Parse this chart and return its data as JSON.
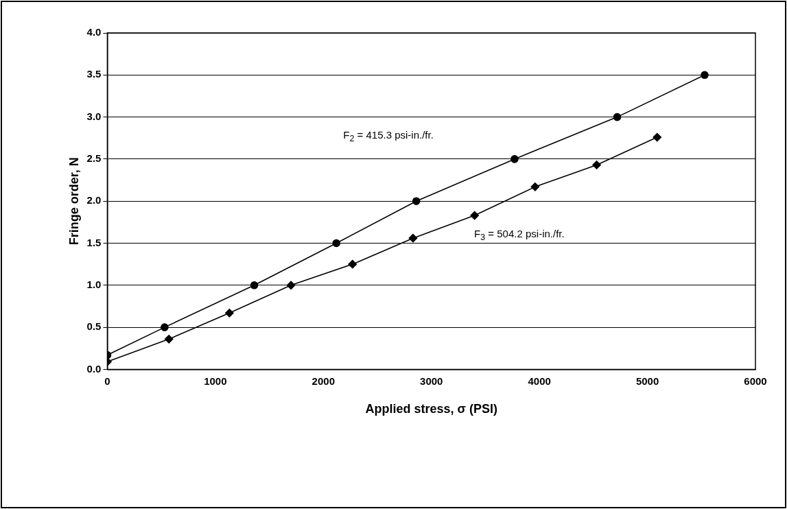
{
  "chart_data": {
    "type": "line",
    "xlabel": "Applied stress, σ (PSI)",
    "ylabel": "Fringe order, N",
    "xlim": [
      0,
      6000
    ],
    "xticks": [
      0,
      1000,
      2000,
      3000,
      4000,
      5000,
      6000
    ],
    "ylim": [
      0,
      4
    ],
    "yticks": [
      {
        "value": 0,
        "label": "0.0"
      },
      {
        "value": 0.5,
        "label": "0.5"
      },
      {
        "value": 1,
        "label": "1.0"
      },
      {
        "value": 1.5,
        "label": "1.5"
      },
      {
        "value": 2,
        "label": "2.0"
      },
      {
        "value": 2.5,
        "label": "2.5"
      },
      {
        "value": 3,
        "label": "3.0"
      },
      {
        "value": 3.5,
        "label": "3.5"
      },
      {
        "value": 4,
        "label": "4.0"
      }
    ],
    "grid": "y",
    "legend": false,
    "line_style": "solid",
    "series": [
      {
        "color": "#000000",
        "marker": "circle",
        "x": [
          0,
          530,
          1360,
          2120,
          2860,
          3770,
          4720,
          5530
        ],
        "values": [
          0.17,
          0.5,
          1.0,
          1.5,
          2.0,
          2.5,
          3.0,
          3.5
        ]
      },
      {
        "color": "#000000",
        "marker": "diamond",
        "x": [
          0,
          570,
          1130,
          1700,
          2270,
          2830,
          3400,
          3960,
          4530,
          5090
        ],
        "values": [
          0.09,
          0.36,
          0.67,
          1.0,
          1.25,
          1.56,
          1.83,
          2.17,
          2.43,
          2.76
        ]
      }
    ],
    "annotations": [
      "F$_{2}$ = 415.3 psi-in./fr.",
      "F$_{3}$ = 504.2 psi-in./fr."
    ]
  }
}
